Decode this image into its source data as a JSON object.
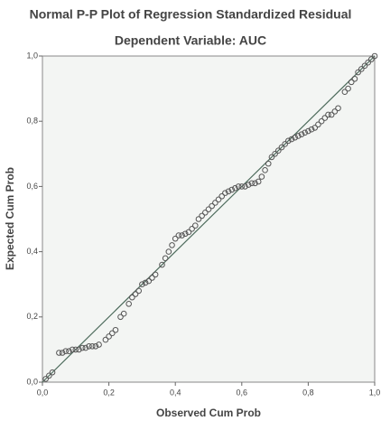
{
  "chart_data": {
    "type": "scatter",
    "title": "Normal P-P Plot of Regression Standardized Residual",
    "subtitle": "Dependent Variable: AUC",
    "x_label": "Observed Cum Prob",
    "y_label": "Expected Cum Prob",
    "xlim": [
      0,
      1
    ],
    "ylim": [
      0,
      1
    ],
    "xticks": [
      {
        "value": 0,
        "label": "0,0"
      },
      {
        "value": 0.2,
        "label": "0,2"
      },
      {
        "value": 0.4,
        "label": "0,4"
      },
      {
        "value": 0.6,
        "label": "0,6"
      },
      {
        "value": 0.8,
        "label": "0,8"
      },
      {
        "value": 1,
        "label": "1,0"
      }
    ],
    "yticks": [
      {
        "value": 0,
        "label": "0,0"
      },
      {
        "value": 0.2,
        "label": "0,2"
      },
      {
        "value": 0.4,
        "label": "0,4"
      },
      {
        "value": 0.6,
        "label": "0,6"
      },
      {
        "value": 0.8,
        "label": "0,8"
      },
      {
        "value": 1,
        "label": "1,0"
      }
    ],
    "grid": false,
    "color": "#555555",
    "line_color": "#4d6b5c",
    "x": [
      0.01,
      0.02,
      0.03,
      0.05,
      0.06,
      0.07,
      0.08,
      0.09,
      0.1,
      0.11,
      0.12,
      0.13,
      0.14,
      0.15,
      0.16,
      0.17,
      0.19,
      0.2,
      0.21,
      0.22,
      0.235,
      0.245,
      0.26,
      0.27,
      0.28,
      0.29,
      0.3,
      0.31,
      0.32,
      0.33,
      0.34,
      0.36,
      0.37,
      0.38,
      0.39,
      0.4,
      0.41,
      0.42,
      0.43,
      0.44,
      0.45,
      0.46,
      0.47,
      0.48,
      0.49,
      0.5,
      0.51,
      0.52,
      0.53,
      0.54,
      0.55,
      0.56,
      0.57,
      0.58,
      0.59,
      0.6,
      0.61,
      0.62,
      0.63,
      0.64,
      0.65,
      0.66,
      0.67,
      0.68,
      0.69,
      0.7,
      0.71,
      0.72,
      0.73,
      0.74,
      0.75,
      0.76,
      0.77,
      0.78,
      0.79,
      0.8,
      0.81,
      0.82,
      0.83,
      0.84,
      0.85,
      0.86,
      0.87,
      0.88,
      0.89,
      0.91,
      0.92,
      0.93,
      0.94,
      0.95,
      0.96,
      0.97,
      0.98,
      0.99,
      1.0
    ],
    "y": [
      0.01,
      0.02,
      0.03,
      0.09,
      0.09,
      0.095,
      0.095,
      0.1,
      0.1,
      0.1,
      0.105,
      0.105,
      0.11,
      0.11,
      0.11,
      0.115,
      0.13,
      0.14,
      0.15,
      0.16,
      0.2,
      0.21,
      0.24,
      0.26,
      0.27,
      0.28,
      0.3,
      0.305,
      0.31,
      0.32,
      0.33,
      0.36,
      0.38,
      0.4,
      0.42,
      0.44,
      0.45,
      0.45,
      0.455,
      0.46,
      0.47,
      0.48,
      0.5,
      0.51,
      0.52,
      0.53,
      0.54,
      0.55,
      0.56,
      0.57,
      0.58,
      0.585,
      0.59,
      0.595,
      0.6,
      0.6,
      0.6,
      0.605,
      0.61,
      0.61,
      0.615,
      0.63,
      0.65,
      0.67,
      0.69,
      0.7,
      0.71,
      0.72,
      0.73,
      0.74,
      0.745,
      0.75,
      0.755,
      0.76,
      0.765,
      0.77,
      0.775,
      0.78,
      0.79,
      0.8,
      0.81,
      0.82,
      0.82,
      0.83,
      0.84,
      0.89,
      0.9,
      0.92,
      0.93,
      0.95,
      0.96,
      0.97,
      0.98,
      0.99,
      1.0
    ]
  }
}
